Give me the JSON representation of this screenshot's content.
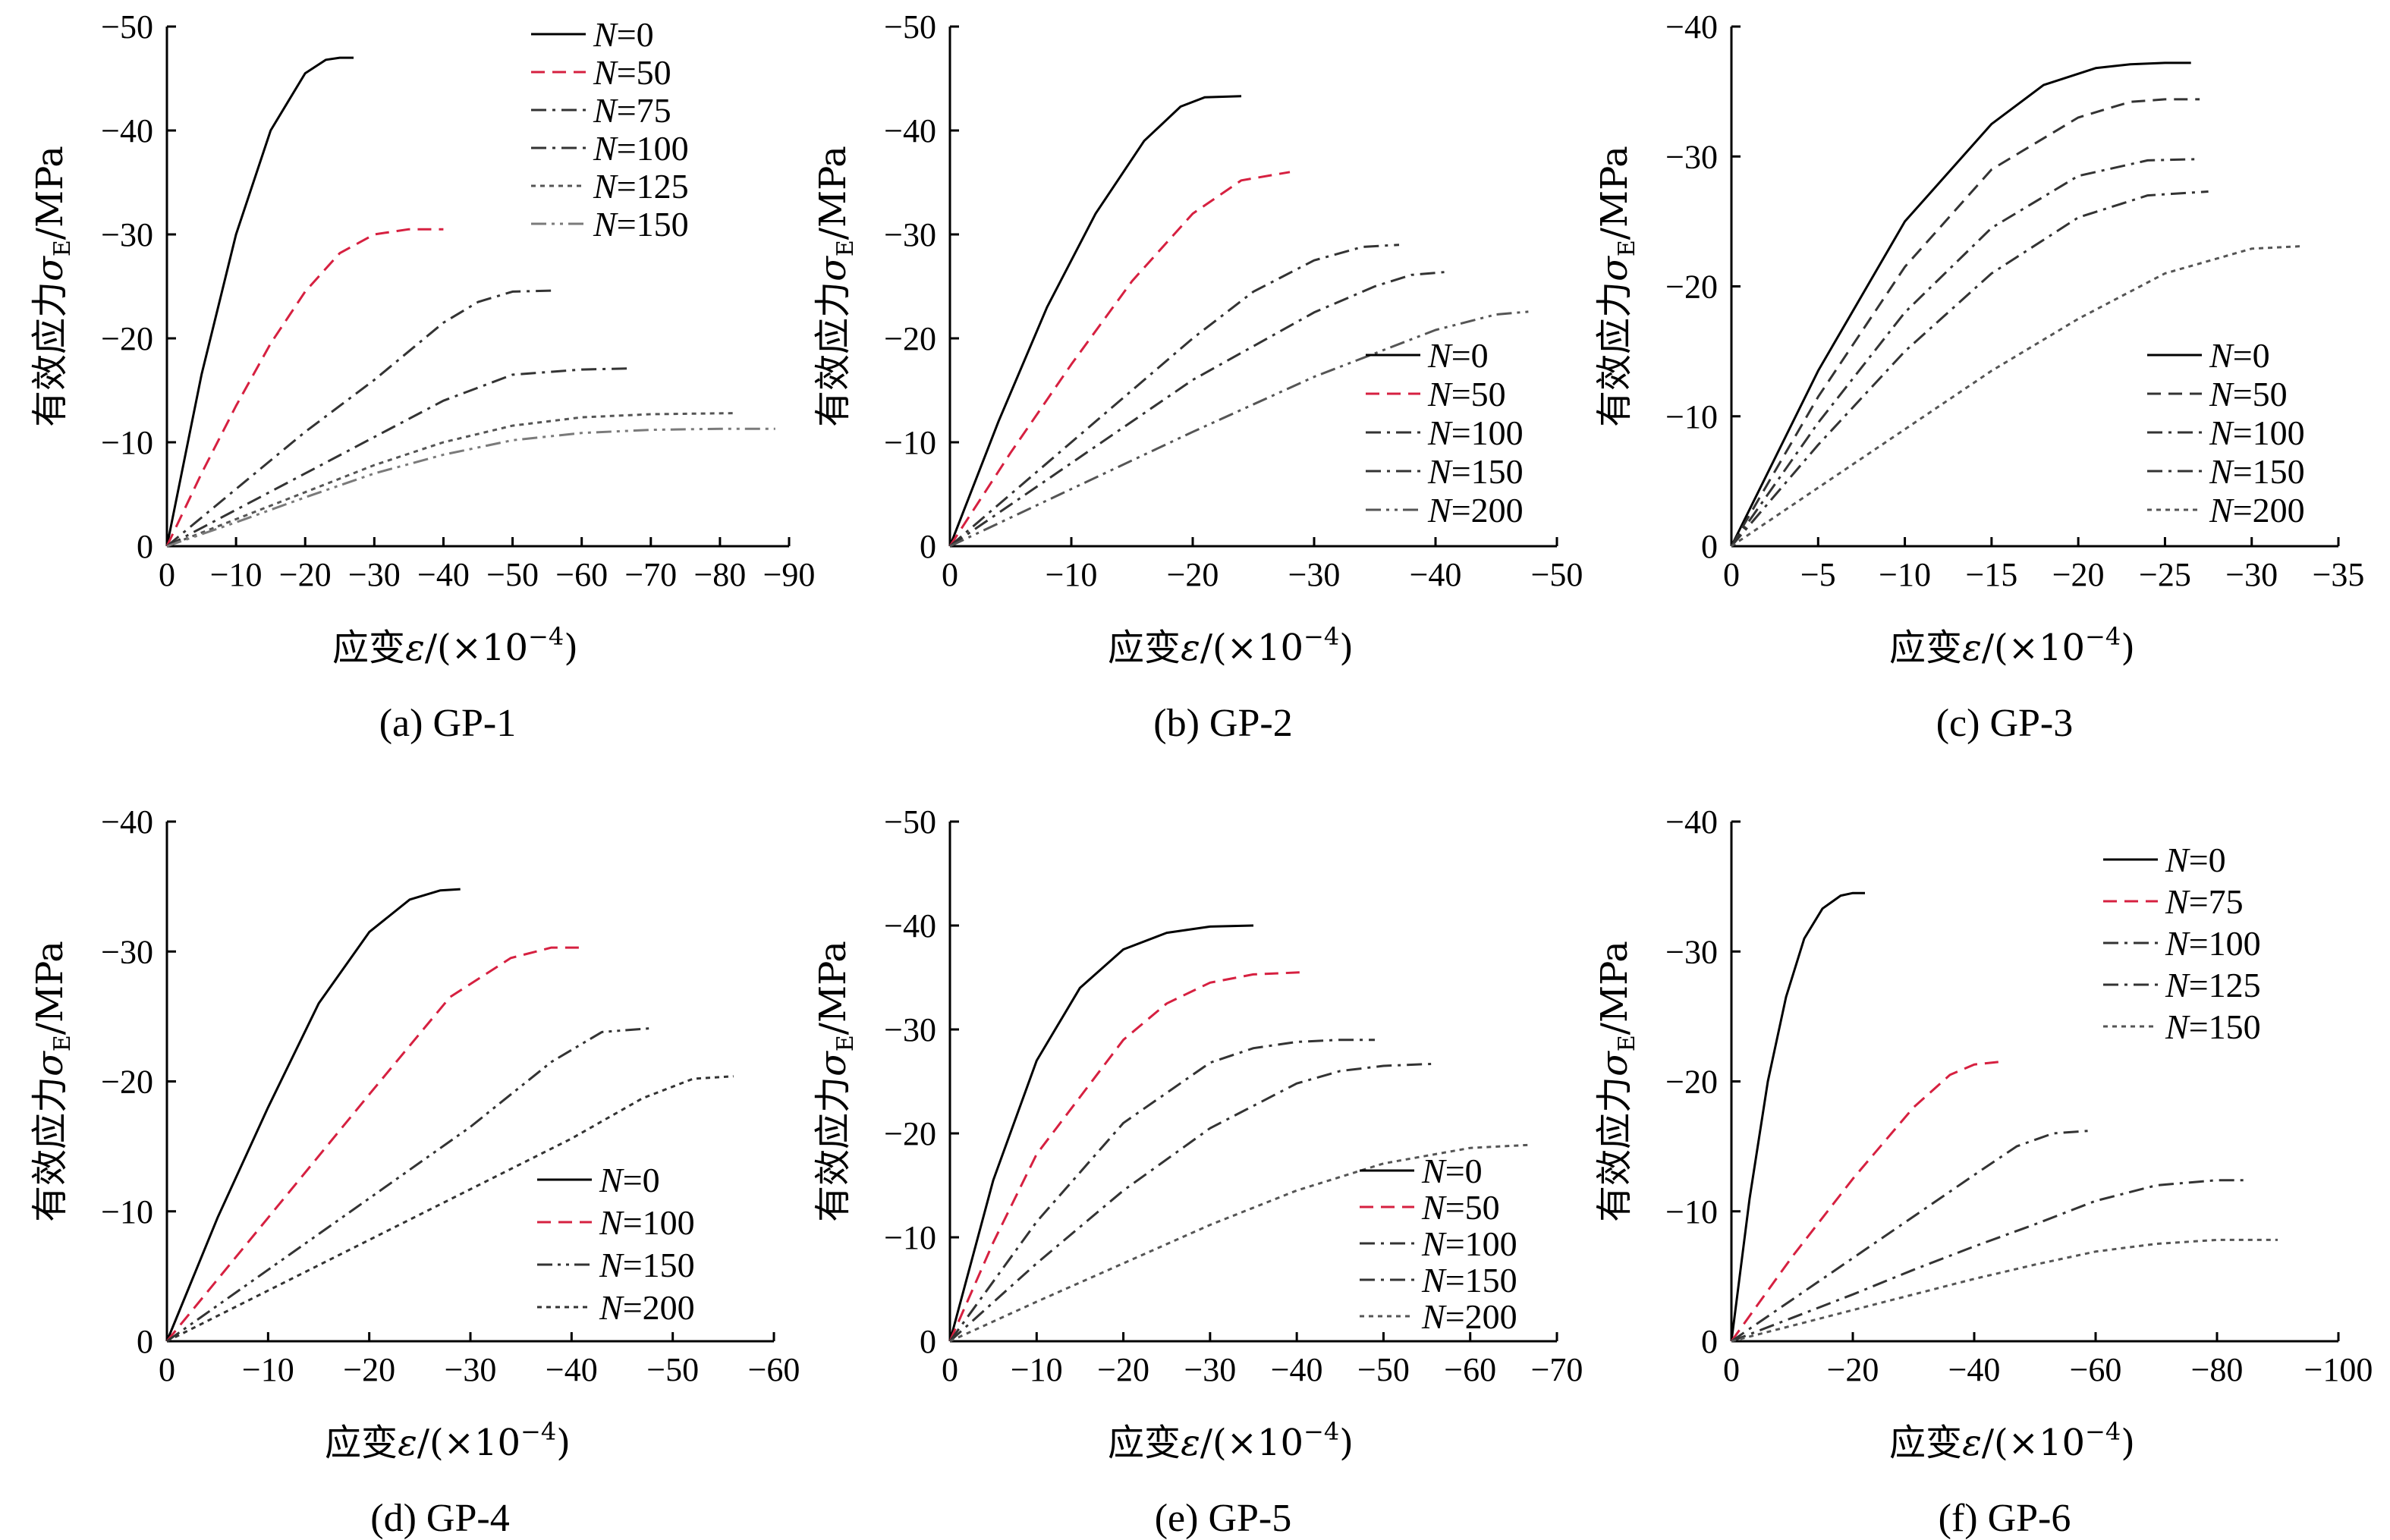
{
  "chart_data": [
    {
      "type": "line",
      "caption": "(a) GP-1",
      "ylabel": {
        "main": "有效应力",
        "sym": "σ",
        "sub": "E",
        "unit": "/MPa"
      },
      "xlabel": {
        "main": "应变",
        "sym": "ε",
        "unit": "/(×10",
        "exp": "−4",
        "close": ")"
      },
      "xlim": [
        0,
        -90
      ],
      "ylim": [
        0,
        -50
      ],
      "xticks": [
        0,
        -10,
        -20,
        -30,
        -40,
        -50,
        -60,
        -70,
        -80,
        -90
      ],
      "yticks": [
        0,
        -10,
        -20,
        -30,
        -40,
        -50
      ],
      "xtick_labels": [
        "0",
        "−10",
        "−20",
        "−30",
        "−40",
        "−50",
        "−60",
        "−70",
        "−80",
        "−90"
      ],
      "ytick_labels": [
        "0",
        "−10",
        "−20",
        "−30",
        "−40",
        "−50"
      ],
      "legend_position": "top-right",
      "series": [
        {
          "name_var": "N",
          "name_val": "=0",
          "color": "#000000",
          "dash": "solid",
          "x": [
            0,
            -5,
            -10,
            -15,
            -20,
            -23,
            -25,
            -27
          ],
          "y": [
            0,
            -16.5,
            -30,
            -40,
            -45.5,
            -46.8,
            -47,
            -47
          ]
        },
        {
          "name_var": "N",
          "name_val": "=50",
          "color": "#d62040",
          "dash": "dashed",
          "x": [
            0,
            -5,
            -10,
            -15,
            -20,
            -25,
            -30,
            -35,
            -40
          ],
          "y": [
            0,
            -7,
            -13.5,
            -19.5,
            -24.5,
            -28.2,
            -30,
            -30.5,
            -30.5
          ]
        },
        {
          "name_var": "N",
          "name_val": "=75",
          "color": "#333333",
          "dash": "dashdot",
          "x": [
            0,
            -10,
            -20,
            -30,
            -40,
            -45,
            -50,
            -56
          ],
          "y": [
            0,
            -5.5,
            -11,
            -16,
            -21.5,
            -23.5,
            -24.5,
            -24.6
          ]
        },
        {
          "name_var": "N",
          "name_val": "=100",
          "color": "#333333",
          "dash": "dashdot",
          "x": [
            0,
            -10,
            -20,
            -30,
            -40,
            -50,
            -60,
            -67
          ],
          "y": [
            0,
            -3.5,
            -7,
            -10.5,
            -14,
            -16.5,
            -17,
            -17.1
          ]
        },
        {
          "name_var": "N",
          "name_val": "=125",
          "color": "#555555",
          "dash": "dotted",
          "x": [
            0,
            -10,
            -20,
            -30,
            -40,
            -50,
            -60,
            -70,
            -82
          ],
          "y": [
            0,
            -2.6,
            -5.2,
            -7.8,
            -10,
            -11.6,
            -12.4,
            -12.7,
            -12.8
          ]
        },
        {
          "name_var": "N",
          "name_val": "=150",
          "color": "#7a7a7a",
          "dash": "dashdotdot",
          "x": [
            0,
            -10,
            -20,
            -30,
            -40,
            -50,
            -60,
            -70,
            -80,
            -88
          ],
          "y": [
            0,
            -2.3,
            -4.7,
            -7,
            -8.8,
            -10.2,
            -10.9,
            -11.2,
            -11.3,
            -11.3
          ]
        }
      ]
    },
    {
      "type": "line",
      "caption": "(b) GP-2",
      "ylabel": {
        "main": "有效应力",
        "sym": "σ",
        "sub": "E",
        "unit": "/MPa"
      },
      "xlabel": {
        "main": "应变",
        "sym": "ε",
        "unit": "/(×10",
        "exp": "−4",
        "close": ")"
      },
      "xlim": [
        0,
        -50
      ],
      "ylim": [
        0,
        -50
      ],
      "xticks": [
        0,
        -10,
        -20,
        -30,
        -40,
        -50
      ],
      "yticks": [
        0,
        -10,
        -20,
        -30,
        -40,
        -50
      ],
      "xtick_labels": [
        "0",
        "−10",
        "−20",
        "−30",
        "−40",
        "−50"
      ],
      "ytick_labels": [
        "0",
        "−10",
        "−20",
        "−30",
        "−40",
        "−50"
      ],
      "legend_position": "bottom-right",
      "series": [
        {
          "name_var": "N",
          "name_val": "=0",
          "color": "#000000",
          "dash": "solid",
          "x": [
            0,
            -4,
            -8,
            -12,
            -16,
            -19,
            -21,
            -24
          ],
          "y": [
            0,
            -12,
            -23,
            -32,
            -39,
            -42.3,
            -43.2,
            -43.3
          ]
        },
        {
          "name_var": "N",
          "name_val": "=50",
          "color": "#d62040",
          "dash": "dashed",
          "x": [
            0,
            -5,
            -10,
            -15,
            -20,
            -24,
            -28
          ],
          "y": [
            0,
            -9,
            -17.5,
            -25.5,
            -32,
            -35.2,
            -36
          ]
        },
        {
          "name_var": "N",
          "name_val": "=100",
          "color": "#333333",
          "dash": "dashdot",
          "x": [
            0,
            -10,
            -20,
            -25,
            -30,
            -34,
            -37
          ],
          "y": [
            0,
            -10,
            -20,
            -24.5,
            -27.5,
            -28.8,
            -29
          ]
        },
        {
          "name_var": "N",
          "name_val": "=150",
          "color": "#333333",
          "dash": "dashdot",
          "x": [
            0,
            -10,
            -20,
            -30,
            -35,
            -38,
            -41
          ],
          "y": [
            0,
            -8,
            -16,
            -22.5,
            -25,
            -26.1,
            -26.4
          ]
        },
        {
          "name_var": "N",
          "name_val": "=200",
          "color": "#555555",
          "dash": "dashdotdot",
          "x": [
            0,
            -10,
            -20,
            -30,
            -40,
            -45,
            -48
          ],
          "y": [
            0,
            -5.5,
            -11,
            -16.3,
            -20.8,
            -22.3,
            -22.6
          ]
        }
      ]
    },
    {
      "type": "line",
      "caption": "(c) GP-3",
      "ylabel": {
        "main": "有效应力",
        "sym": "σ",
        "sub": "E",
        "unit": "/MPa"
      },
      "xlabel": {
        "main": "应变",
        "sym": "ε",
        "unit": "/(×10",
        "exp": "−4",
        "close": ")"
      },
      "xlim": [
        0,
        -35
      ],
      "ylim": [
        0,
        -40
      ],
      "xticks": [
        0,
        -5,
        -10,
        -15,
        -20,
        -25,
        -30,
        -35
      ],
      "yticks": [
        0,
        -10,
        -20,
        -30,
        -40
      ],
      "xtick_labels": [
        "0",
        "−5",
        "−10",
        "−15",
        "−20",
        "−25",
        "−30",
        "−35"
      ],
      "ytick_labels": [
        "0",
        "−10",
        "−20",
        "−30",
        "−40"
      ],
      "legend_position": "bottom-right",
      "series": [
        {
          "name_var": "N",
          "name_val": "=0",
          "color": "#000000",
          "dash": "solid",
          "x": [
            0,
            -5,
            -10,
            -15,
            -18,
            -21,
            -23,
            -25,
            -26.5
          ],
          "y": [
            0,
            -13.5,
            -25,
            -32.5,
            -35.5,
            -36.8,
            -37.1,
            -37.2,
            -37.2
          ]
        },
        {
          "name_var": "N",
          "name_val": "=50",
          "color": "#333333",
          "dash": "dashed",
          "x": [
            0,
            -5,
            -10,
            -15,
            -20,
            -23,
            -25,
            -27
          ],
          "y": [
            0,
            -11.5,
            -21.5,
            -29,
            -33,
            -34.2,
            -34.4,
            -34.4
          ]
        },
        {
          "name_var": "N",
          "name_val": "=100",
          "color": "#333333",
          "dash": "dashdot",
          "x": [
            0,
            -5,
            -10,
            -15,
            -20,
            -24,
            -27
          ],
          "y": [
            0,
            -9.5,
            -18,
            -24.5,
            -28.5,
            -29.7,
            -29.8
          ]
        },
        {
          "name_var": "N",
          "name_val": "=150",
          "color": "#333333",
          "dash": "dashdot",
          "x": [
            0,
            -5,
            -10,
            -15,
            -20,
            -24,
            -27.5
          ],
          "y": [
            0,
            -7.8,
            -15,
            -21,
            -25.3,
            -27,
            -27.3
          ]
        },
        {
          "name_var": "N",
          "name_val": "=200",
          "color": "#555555",
          "dash": "dotted",
          "x": [
            0,
            -5,
            -10,
            -15,
            -20,
            -25,
            -30,
            -33
          ],
          "y": [
            0,
            -4.5,
            -9,
            -13.5,
            -17.5,
            -21,
            -22.9,
            -23.1
          ]
        }
      ]
    },
    {
      "type": "line",
      "caption": "(d) GP-4",
      "ylabel": {
        "main": "有效应力",
        "sym": "σ",
        "sub": "E",
        "unit": "/MPa"
      },
      "xlabel": {
        "main": "应变",
        "sym": "ε",
        "unit": "/(×10",
        "exp": "−4",
        "close": ")"
      },
      "xlim": [
        0,
        -60
      ],
      "ylim": [
        0,
        -40
      ],
      "xticks": [
        0,
        -10,
        -20,
        -30,
        -40,
        -50,
        -60
      ],
      "yticks": [
        0,
        -10,
        -20,
        -30,
        -40
      ],
      "xtick_labels": [
        "0",
        "−10",
        "−20",
        "−30",
        "−40",
        "−50",
        "−60"
      ],
      "ytick_labels": [
        "0",
        "−10",
        "−20",
        "−30",
        "−40"
      ],
      "legend_position": "bottom-right",
      "series": [
        {
          "name_var": "N",
          "name_val": "=0",
          "color": "#000000",
          "dash": "solid",
          "x": [
            0,
            -5,
            -10,
            -15,
            -20,
            -24,
            -27,
            -29
          ],
          "y": [
            0,
            -9.5,
            -18,
            -26,
            -31.5,
            -34,
            -34.7,
            -34.8
          ]
        },
        {
          "name_var": "N",
          "name_val": "=100",
          "color": "#d62040",
          "dash": "dashed",
          "x": [
            0,
            -10,
            -20,
            -28,
            -34,
            -38,
            -41
          ],
          "y": [
            0,
            -9.5,
            -19,
            -26.5,
            -29.5,
            -30.3,
            -30.3
          ]
        },
        {
          "name_var": "N",
          "name_val": "=150",
          "color": "#333333",
          "dash": "dashdotdot",
          "x": [
            0,
            -10,
            -20,
            -30,
            -38,
            -43,
            -48
          ],
          "y": [
            0,
            -5.5,
            -11,
            -16.5,
            -21.5,
            -23.8,
            -24.1
          ]
        },
        {
          "name_var": "N",
          "name_val": "=200",
          "color": "#333333",
          "dash": "dotted",
          "x": [
            0,
            -10,
            -20,
            -30,
            -40,
            -47,
            -52,
            -56
          ],
          "y": [
            0,
            -3.9,
            -7.8,
            -11.7,
            -15.6,
            -18.7,
            -20.2,
            -20.4
          ]
        }
      ]
    },
    {
      "type": "line",
      "caption": "(e) GP-5",
      "ylabel": {
        "main": "有效应力",
        "sym": "σ",
        "sub": "E",
        "unit": "/MPa"
      },
      "xlabel": {
        "main": "应变",
        "sym": "ε",
        "unit": "/(×10",
        "exp": "−4",
        "close": ")"
      },
      "xlim": [
        0,
        -70
      ],
      "ylim": [
        0,
        -50
      ],
      "xticks": [
        0,
        -10,
        -20,
        -30,
        -40,
        -50,
        -60,
        -70
      ],
      "yticks": [
        0,
        -10,
        -20,
        -30,
        -40,
        -50
      ],
      "xtick_labels": [
        "0",
        "−10",
        "−20",
        "−30",
        "−40",
        "−50",
        "−60",
        "−70"
      ],
      "ytick_labels": [
        "0",
        "−10",
        "−20",
        "−30",
        "−40",
        "−50"
      ],
      "legend_position": "bottom-right",
      "series": [
        {
          "name_var": "N",
          "name_val": "=0",
          "color": "#000000",
          "dash": "solid",
          "x": [
            0,
            -5,
            -10,
            -15,
            -20,
            -25,
            -30,
            -35
          ],
          "y": [
            0,
            -15.5,
            -27,
            -34,
            -37.7,
            -39.3,
            -39.9,
            -40
          ]
        },
        {
          "name_var": "N",
          "name_val": "=50",
          "color": "#d62040",
          "dash": "dashed",
          "x": [
            0,
            -5,
            -10,
            -20,
            -25,
            -30,
            -35,
            -40.5
          ],
          "y": [
            0,
            -9.5,
            -18,
            -29,
            -32.5,
            -34.5,
            -35.3,
            -35.5
          ]
        },
        {
          "name_var": "N",
          "name_val": "=100",
          "color": "#333333",
          "dash": "dashdot",
          "x": [
            0,
            -10,
            -20,
            -30,
            -35,
            -40,
            -45,
            -49
          ],
          "y": [
            0,
            -11.5,
            -21,
            -26.8,
            -28.2,
            -28.8,
            -29,
            -29
          ]
        },
        {
          "name_var": "N",
          "name_val": "=150",
          "color": "#333333",
          "dash": "dashdot",
          "x": [
            0,
            -10,
            -20,
            -30,
            -40,
            -45,
            -50,
            -56
          ],
          "y": [
            0,
            -7.5,
            -14.5,
            -20.5,
            -24.8,
            -26,
            -26.5,
            -26.7
          ]
        },
        {
          "name_var": "N",
          "name_val": "=200",
          "color": "#555555",
          "dash": "dotted",
          "x": [
            0,
            -10,
            -20,
            -30,
            -40,
            -50,
            -60,
            -67
          ],
          "y": [
            0,
            -3.8,
            -7.5,
            -11.2,
            -14.5,
            -17.1,
            -18.6,
            -18.9
          ]
        }
      ]
    },
    {
      "type": "line",
      "caption": "(f) GP-6",
      "ylabel": {
        "main": "有效应力",
        "sym": "σ",
        "sub": "E",
        "unit": "/MPa"
      },
      "xlabel": {
        "main": "应变",
        "sym": "ε",
        "unit": "/(×10",
        "exp": "−4",
        "close": ")"
      },
      "xlim": [
        0,
        -100
      ],
      "ylim": [
        0,
        -40
      ],
      "xticks": [
        0,
        -20,
        -40,
        -60,
        -80,
        -100
      ],
      "yticks": [
        0,
        -10,
        -20,
        -30,
        -40
      ],
      "xtick_labels": [
        "0",
        "−20",
        "−40",
        "−60",
        "−80",
        "−100"
      ],
      "ytick_labels": [
        "0",
        "−10",
        "−20",
        "−30",
        "−40"
      ],
      "legend_position": "top-right",
      "series": [
        {
          "name_var": "N",
          "name_val": "=0",
          "color": "#000000",
          "dash": "solid",
          "x": [
            0,
            -3,
            -6,
            -9,
            -12,
            -15,
            -18,
            -20,
            -22
          ],
          "y": [
            0,
            -11,
            -20,
            -26.5,
            -31,
            -33.3,
            -34.3,
            -34.5,
            -34.5
          ]
        },
        {
          "name_var": "N",
          "name_val": "=75",
          "color": "#d62040",
          "dash": "dashed",
          "x": [
            0,
            -10,
            -20,
            -30,
            -36,
            -40,
            -44
          ],
          "y": [
            0,
            -6.5,
            -12.5,
            -18,
            -20.5,
            -21.3,
            -21.5
          ]
        },
        {
          "name_var": "N",
          "name_val": "=100",
          "color": "#333333",
          "dash": "dashdot",
          "x": [
            0,
            -10,
            -20,
            -30,
            -40,
            -47,
            -53,
            -59
          ],
          "y": [
            0,
            -3.2,
            -6.4,
            -9.6,
            -12.8,
            -15,
            -16,
            -16.2
          ]
        },
        {
          "name_var": "N",
          "name_val": "=125",
          "color": "#333333",
          "dash": "dashdot",
          "x": [
            0,
            -10,
            -20,
            -30,
            -40,
            -50,
            -60,
            -70,
            -80,
            -85
          ],
          "y": [
            0,
            -1.8,
            -3.6,
            -5.5,
            -7.3,
            -9,
            -10.8,
            -12,
            -12.4,
            -12.4
          ]
        },
        {
          "name_var": "N",
          "name_val": "=150",
          "color": "#555555",
          "dash": "dotted",
          "x": [
            0,
            -10,
            -20,
            -30,
            -40,
            -50,
            -60,
            -70,
            -80,
            -90
          ],
          "y": [
            0,
            -1.2,
            -2.4,
            -3.6,
            -4.8,
            -5.9,
            -6.9,
            -7.5,
            -7.8,
            -7.8
          ]
        }
      ]
    }
  ]
}
